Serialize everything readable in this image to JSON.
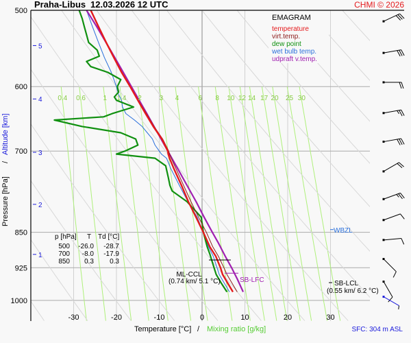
{
  "header": {
    "station": "Praha-Libus",
    "datetime": "12.03.2026 12 UTC",
    "credit": "CHMI © 2026"
  },
  "footer": {
    "sfc": "SFC: 304 m ASL"
  },
  "legend": {
    "title": "EMAGRAM",
    "items": [
      {
        "label": "temperature",
        "color": "#e41a1c"
      },
      {
        "label": "virt.temp.",
        "color": "#8b1a1a"
      },
      {
        "label": "dew point",
        "color": "#109010"
      },
      {
        "label": "wet bulb temp.",
        "color": "#2a6fdb"
      },
      {
        "label": "udpraft v.temp.",
        "color": "#a020b0"
      }
    ]
  },
  "table": {
    "headers": [
      "p [hPa]",
      "T",
      "Td [°C]"
    ],
    "rows": [
      [
        "500",
        "-26.0",
        "-28.7"
      ],
      [
        "700",
        "-8.0",
        "-17.9"
      ],
      [
        "850",
        "0.3",
        "0.3"
      ]
    ]
  },
  "annotations": {
    "ml_ccl": "ML-CCL",
    "ml_ccl_detail": "(0.74 km/ 5.1 °C)",
    "sb_lfc": "SB-LFC",
    "sb_lcl": "SB-LCL",
    "sb_lcl_detail": "(0.55 km/ 6.2 °C)",
    "wbzl": "WBZL"
  },
  "chart_data": {
    "type": "line",
    "title": "Praha-Libus 12.03.2026 12 UTC",
    "diagram": "emagram",
    "xlabel": "Temperature [°C]",
    "xlabel2": "Mixing ratio [g/kg]",
    "ylabel": "Pressure [hPa]",
    "ylabel2": "Altitude [km]",
    "xlim": [
      -40,
      33
    ],
    "ylim": [
      1050,
      500
    ],
    "x_ticks": [
      -30,
      -20,
      -10,
      0,
      10,
      20,
      30
    ],
    "y_ticks": [
      500,
      600,
      700,
      850,
      925,
      1000
    ],
    "altitude_ticks": [
      {
        "km": 1,
        "p": 896
      },
      {
        "km": 2,
        "p": 795
      },
      {
        "km": 3,
        "p": 702
      },
      {
        "km": 4,
        "p": 618
      },
      {
        "km": 5,
        "p": 544
      }
    ],
    "mixing_ratio_labels": [
      "0.4",
      "0.6",
      "1",
      "1.4",
      "2",
      "3",
      "4",
      "6",
      "8",
      "10",
      "12",
      "14",
      "17",
      "20",
      "25",
      "30"
    ],
    "mixing_ratio_values": [
      0.4,
      0.6,
      1,
      1.4,
      2,
      3,
      4,
      6,
      8,
      10,
      12,
      14,
      17,
      20,
      25,
      30
    ],
    "series": [
      {
        "name": "temperature",
        "p": [
          980,
          960,
          940,
          925,
          900,
          880,
          850,
          820,
          790,
          760,
          730,
          712,
          705,
          700,
          680,
          660,
          640,
          620,
          600,
          580,
          560,
          540,
          520,
          500
        ],
        "t": [
          7.2,
          6.0,
          4.8,
          4.3,
          3.2,
          1.8,
          0.3,
          -1.4,
          -3.2,
          -4.8,
          -6.6,
          -7.6,
          -7.9,
          -8.0,
          -9.4,
          -11.4,
          -13.2,
          -15.0,
          -16.8,
          -18.8,
          -20.6,
          -22.4,
          -24.2,
          -26.0
        ]
      },
      {
        "name": "virt.temp.",
        "p": [
          980,
          960,
          940,
          925,
          900,
          880,
          850,
          820,
          790,
          760,
          730,
          712,
          705,
          700,
          680,
          660,
          640,
          620,
          600,
          580,
          560,
          540,
          520,
          500
        ],
        "t": [
          8.2,
          7.0,
          5.8,
          5.1,
          3.8,
          2.5,
          1.0,
          -0.8,
          -2.6,
          -4.3,
          -6.1,
          -7.2,
          -7.6,
          -7.8,
          -9.2,
          -11.2,
          -13.0,
          -14.9,
          -16.7,
          -18.7,
          -20.5,
          -22.3,
          -24.1,
          -25.9
        ]
      },
      {
        "name": "dew point",
        "p": [
          980,
          960,
          940,
          925,
          910,
          895,
          880,
          860,
          850,
          820,
          790,
          770,
          760,
          745,
          725,
          712,
          705,
          700,
          690,
          680,
          670,
          660,
          650,
          645,
          640,
          630,
          620,
          615,
          608,
          600,
          590,
          580,
          572,
          565,
          558,
          550,
          540,
          530,
          520,
          510,
          500
        ],
        "t": [
          5.8,
          4.5,
          3.3,
          2.8,
          2.3,
          1.8,
          1.2,
          0.6,
          0.3,
          -0.2,
          -3.5,
          -7.0,
          -7.5,
          -7.9,
          -8.5,
          -11.0,
          -20.0,
          -18.0,
          -15.0,
          -15.5,
          -19.0,
          -28.0,
          -34.5,
          -23.0,
          -21.0,
          -16.0,
          -20.0,
          -20.5,
          -19.5,
          -19.8,
          -19.0,
          -22.0,
          -26.0,
          -27.0,
          -24.0,
          -24.5,
          -26.5,
          -27.0,
          -27.5,
          -28.0,
          -28.7
        ]
      },
      {
        "name": "wet bulb temp.",
        "p": [
          980,
          960,
          940,
          925,
          900,
          880,
          850,
          820,
          790,
          760,
          730,
          712,
          705,
          700,
          690,
          680,
          670,
          660,
          650,
          640,
          630,
          620,
          610,
          600,
          580,
          560,
          540,
          520,
          500
        ],
        "t": [
          6.4,
          5.2,
          4.0,
          3.5,
          2.6,
          1.5,
          0.3,
          -1.1,
          -3.3,
          -5.3,
          -7.3,
          -8.3,
          -9.5,
          -10.0,
          -11.0,
          -11.6,
          -12.8,
          -14.0,
          -15.8,
          -17.8,
          -18.6,
          -18.8,
          -19.6,
          -20.0,
          -21.2,
          -22.8,
          -24.2,
          -25.6,
          -27.0
        ]
      },
      {
        "name": "udpraft v.temp.",
        "p": [
          980,
          950,
          925,
          900,
          870,
          850,
          820,
          790,
          760,
          730,
          700,
          670,
          640,
          610,
          580,
          550,
          520,
          500
        ],
        "t": [
          9.6,
          8.2,
          6.9,
          5.4,
          3.7,
          2.4,
          0.5,
          -1.4,
          -3.5,
          -5.7,
          -8.0,
          -10.4,
          -12.9,
          -15.6,
          -18.4,
          -21.4,
          -24.6,
          -27.0
        ]
      }
    ],
    "levels": {
      "wbzl_p": 850,
      "ml_ccl_p": 917,
      "sb_lfc_p": 925,
      "sb_lcl_p": 938
    },
    "wind_barbs": [
      {
        "p": 510,
        "dir": 245,
        "kt": 30
      },
      {
        "p": 550,
        "dir": 260,
        "kt": 30
      },
      {
        "p": 590,
        "dir": 270,
        "kt": 20
      },
      {
        "p": 635,
        "dir": 260,
        "kt": 25
      },
      {
        "p": 680,
        "dir": 260,
        "kt": 30
      },
      {
        "p": 730,
        "dir": 240,
        "kt": 20
      },
      {
        "p": 780,
        "dir": 250,
        "kt": 25
      },
      {
        "p": 820,
        "dir": 250,
        "kt": 10
      },
      {
        "p": 860,
        "dir": 265,
        "kt": 10
      },
      {
        "p": 900,
        "dir": 315,
        "kt": 10
      },
      {
        "p": 950,
        "dir": 330,
        "kt": 10
      },
      {
        "p": 985,
        "dir": 300,
        "kt": 5
      }
    ],
    "grid": true
  }
}
